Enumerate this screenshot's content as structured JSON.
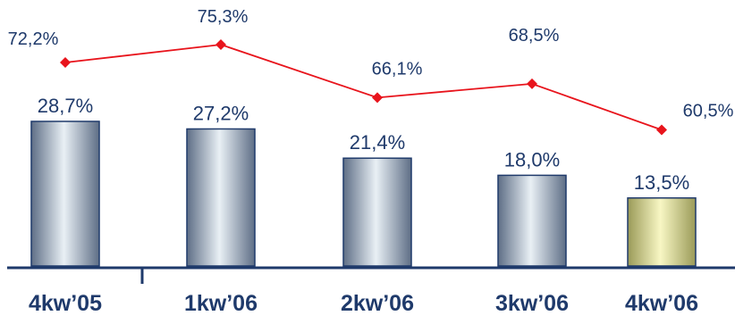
{
  "chart_data": {
    "type": "bar",
    "categories": [
      "4kw’05",
      "1kw’06",
      "2kw’06",
      "3kw’06",
      "4kw’06"
    ],
    "series": [
      {
        "type": "bar",
        "values": [
          28.7,
          27.2,
          21.4,
          18.0,
          13.5
        ],
        "labels": [
          "28,7%",
          "27,2%",
          "21,4%",
          "18,0%",
          "13,5%"
        ]
      },
      {
        "type": "line",
        "values": [
          72.2,
          75.3,
          66.1,
          68.5,
          60.5
        ],
        "labels": [
          "72,2%",
          "75,3%",
          "66,1%",
          "68,5%",
          "60,5%"
        ]
      }
    ],
    "colors": {
      "bar": "#c0ccd6",
      "bar_highlight": "#e6e59a",
      "line": "#e8141c",
      "axis": "#1f3a6b",
      "text": "#1f3a6b"
    },
    "grid": false,
    "legend": "none"
  }
}
